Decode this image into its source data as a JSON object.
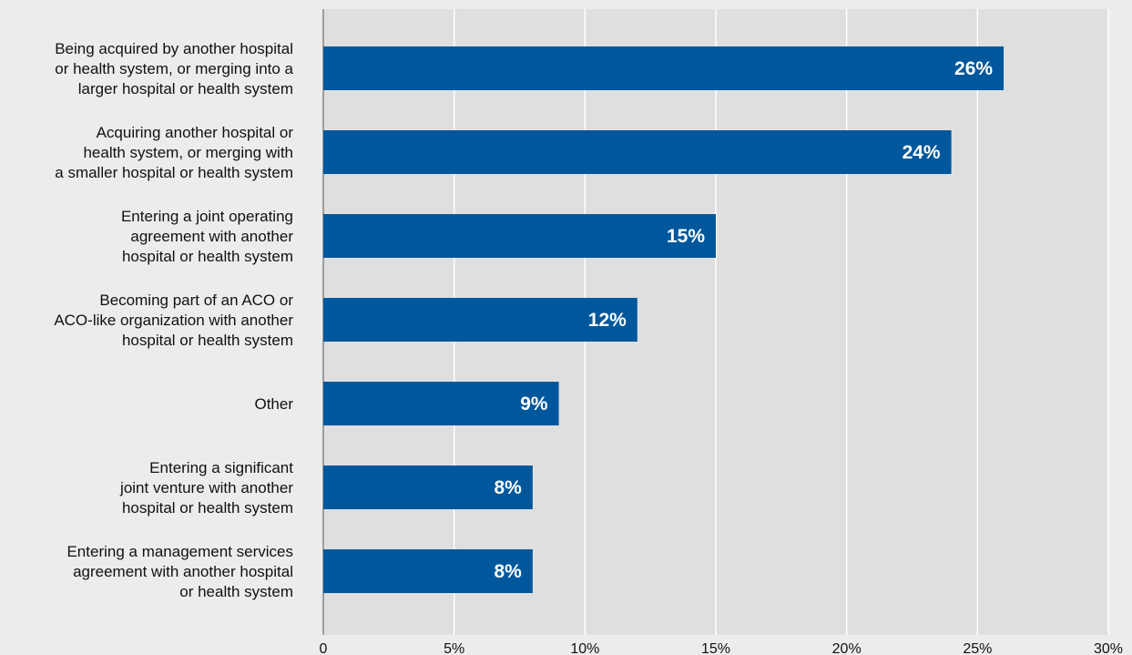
{
  "chart_data": {
    "type": "bar",
    "orientation": "horizontal",
    "categories": [
      [
        "Being acquired by another hospital",
        "or health system, or merging into a",
        "larger hospital or health system"
      ],
      [
        "Acquiring another hospital or",
        "health system, or merging with",
        "a smaller hospital or health system"
      ],
      [
        "Entering a joint operating",
        "agreement with another",
        "hospital or health system"
      ],
      [
        "Becoming part of an ACO or",
        "ACO-like organization with another",
        "hospital or health system"
      ],
      [
        "Other"
      ],
      [
        "Entering a significant",
        "joint venture with another",
        "hospital or health system"
      ],
      [
        "Entering a management services",
        "agreement with another hospital",
        "or health system"
      ]
    ],
    "values": [
      26,
      24,
      15,
      12,
      9,
      8,
      8
    ],
    "data_labels": [
      "26%",
      "24%",
      "15%",
      "12%",
      "9%",
      "8%",
      "8%"
    ],
    "xlim": [
      0,
      30
    ],
    "xticks": [
      0,
      5,
      10,
      15,
      20,
      25,
      30
    ],
    "xtick_labels": [
      "0",
      "5%",
      "10%",
      "15%",
      "20%",
      "25%",
      "30%"
    ],
    "grid": true,
    "title": "",
    "xlabel": "",
    "ylabel": "",
    "colors": {
      "bar": "#00579b",
      "plot_background": "#dfdfe0",
      "page_background": "#ececec",
      "gridline": "#ffffff"
    }
  }
}
